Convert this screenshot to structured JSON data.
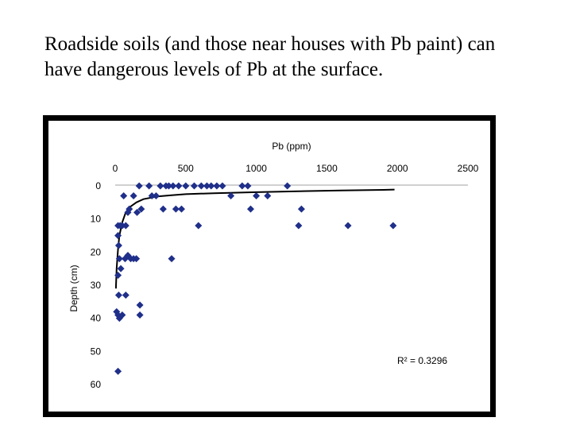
{
  "slide": {
    "title": "Roadside soils (and those near houses with Pb paint) can have dangerous levels of Pb at the surface."
  },
  "chart_data": {
    "type": "scatter",
    "title": "",
    "xlabel": "Pb (ppm)",
    "ylabel": "Depth (cm)",
    "xlim": [
      0,
      2500
    ],
    "ylim": [
      0,
      60
    ],
    "y_inverted": true,
    "x_axis_position": "top",
    "x_ticks": [
      0,
      500,
      1000,
      1500,
      2000,
      2500
    ],
    "y_ticks": [
      0,
      10,
      20,
      30,
      40,
      50,
      60
    ],
    "grid": false,
    "marker": "diamond",
    "marker_color": "#1f2f8a",
    "trendline_color": "#000000",
    "annotation": {
      "text": "R² = 0.3296",
      "position": "bottom-right"
    },
    "points": [
      {
        "x": 20,
        "y": 12
      },
      {
        "x": 35,
        "y": 12
      },
      {
        "x": 50,
        "y": 12
      },
      {
        "x": 60,
        "y": 3
      },
      {
        "x": 75,
        "y": 12
      },
      {
        "x": 90,
        "y": 8
      },
      {
        "x": 100,
        "y": 7
      },
      {
        "x": 130,
        "y": 3
      },
      {
        "x": 155,
        "y": 8
      },
      {
        "x": 170,
        "y": 0
      },
      {
        "x": 185,
        "y": 7
      },
      {
        "x": 240,
        "y": 0
      },
      {
        "x": 260,
        "y": 3
      },
      {
        "x": 290,
        "y": 3
      },
      {
        "x": 320,
        "y": 0
      },
      {
        "x": 340,
        "y": 7
      },
      {
        "x": 360,
        "y": 0
      },
      {
        "x": 380,
        "y": 0
      },
      {
        "x": 410,
        "y": 0
      },
      {
        "x": 430,
        "y": 7
      },
      {
        "x": 450,
        "y": 0
      },
      {
        "x": 470,
        "y": 7
      },
      {
        "x": 500,
        "y": 0
      },
      {
        "x": 560,
        "y": 0
      },
      {
        "x": 610,
        "y": 0
      },
      {
        "x": 650,
        "y": 0
      },
      {
        "x": 680,
        "y": 0
      },
      {
        "x": 720,
        "y": 0
      },
      {
        "x": 760,
        "y": 0
      },
      {
        "x": 820,
        "y": 3
      },
      {
        "x": 900,
        "y": 0
      },
      {
        "x": 940,
        "y": 0
      },
      {
        "x": 960,
        "y": 7
      },
      {
        "x": 1000,
        "y": 3
      },
      {
        "x": 1080,
        "y": 3
      },
      {
        "x": 1220,
        "y": 0
      },
      {
        "x": 1300,
        "y": 12
      },
      {
        "x": 1320,
        "y": 7
      },
      {
        "x": 1650,
        "y": 12
      },
      {
        "x": 1970,
        "y": 12
      },
      {
        "x": 590,
        "y": 12
      },
      {
        "x": 20,
        "y": 15
      },
      {
        "x": 25,
        "y": 18
      },
      {
        "x": 30,
        "y": 22
      },
      {
        "x": 70,
        "y": 22
      },
      {
        "x": 90,
        "y": 21
      },
      {
        "x": 110,
        "y": 22
      },
      {
        "x": 130,
        "y": 22
      },
      {
        "x": 150,
        "y": 22
      },
      {
        "x": 400,
        "y": 22
      },
      {
        "x": 40,
        "y": 25
      },
      {
        "x": 20,
        "y": 27
      },
      {
        "x": 25,
        "y": 33
      },
      {
        "x": 75,
        "y": 33
      },
      {
        "x": 10,
        "y": 38
      },
      {
        "x": 50,
        "y": 39
      },
      {
        "x": 20,
        "y": 39
      },
      {
        "x": 30,
        "y": 40
      },
      {
        "x": 175,
        "y": 36
      },
      {
        "x": 175,
        "y": 39
      },
      {
        "x": 20,
        "y": 56
      }
    ],
    "trendline": [
      {
        "x": 5,
        "y": 31
      },
      {
        "x": 10,
        "y": 25
      },
      {
        "x": 20,
        "y": 19
      },
      {
        "x": 30,
        "y": 15
      },
      {
        "x": 50,
        "y": 11
      },
      {
        "x": 75,
        "y": 8
      },
      {
        "x": 100,
        "y": 6.5
      },
      {
        "x": 150,
        "y": 5
      },
      {
        "x": 200,
        "y": 4
      },
      {
        "x": 300,
        "y": 3.2
      },
      {
        "x": 400,
        "y": 2.8
      },
      {
        "x": 500,
        "y": 2.5
      },
      {
        "x": 700,
        "y": 2.2
      },
      {
        "x": 1000,
        "y": 1.9
      },
      {
        "x": 1300,
        "y": 1.6
      },
      {
        "x": 1600,
        "y": 1.4
      },
      {
        "x": 1900,
        "y": 1.2
      },
      {
        "x": 1980,
        "y": 1.1
      }
    ]
  }
}
